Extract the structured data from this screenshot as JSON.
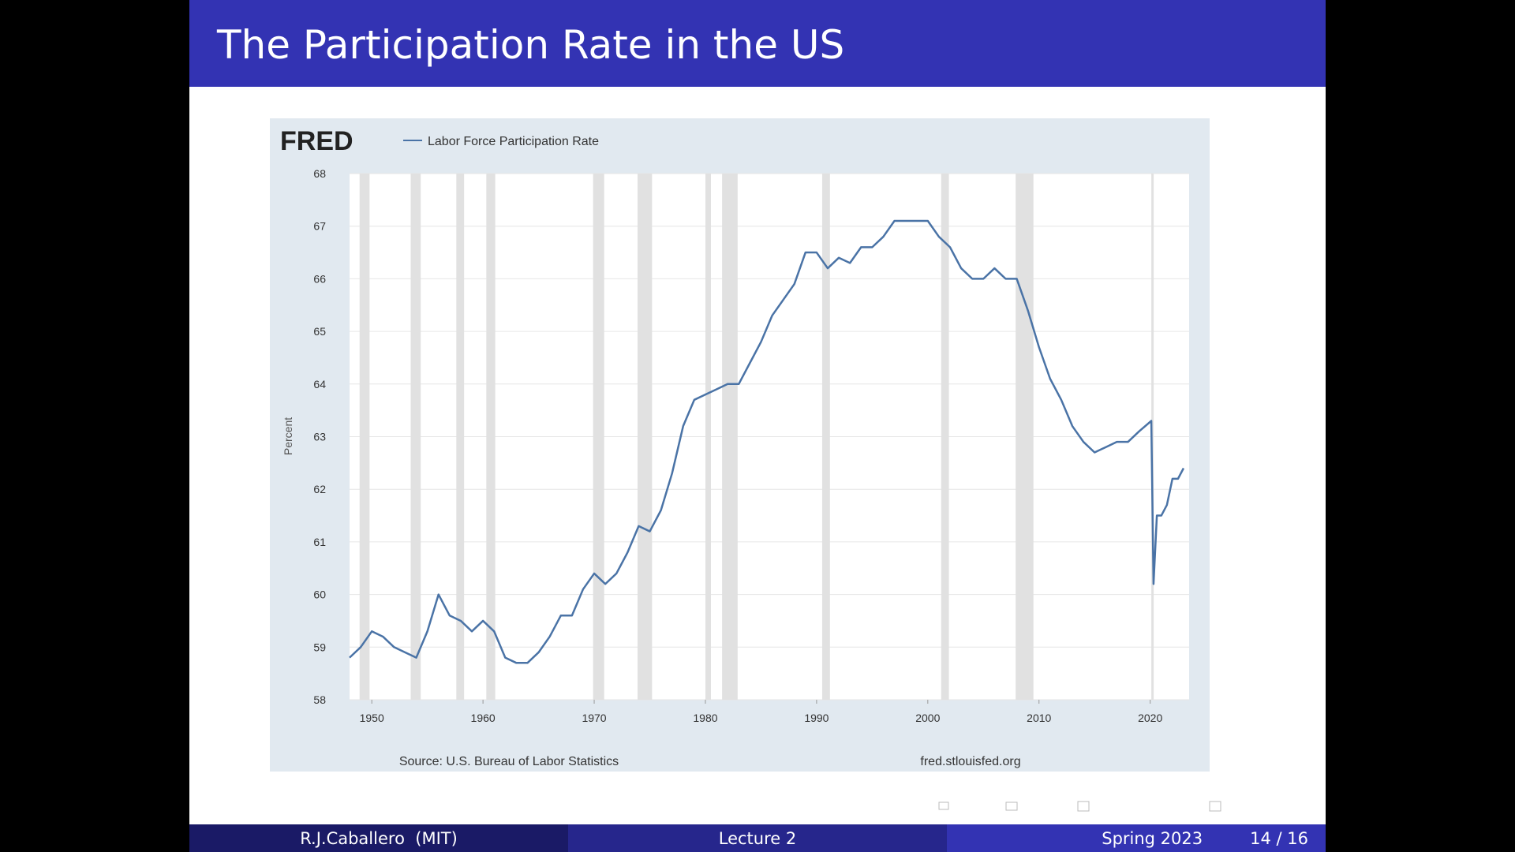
{
  "slide": {
    "title": "The Participation Rate in the US",
    "author": "R.J.Caballero  (MIT)",
    "lecture": "Lecture 2",
    "term": "Spring 2023",
    "page": "14 / 16"
  },
  "chart_data": {
    "type": "line",
    "logo": "FRED",
    "ylabel": "Percent",
    "source": "Source: U.S. Bureau of Labor Statistics",
    "url": "fred.stlouisfed.org",
    "x": [
      1948,
      1949,
      1950,
      1951,
      1952,
      1953,
      1954,
      1955,
      1956,
      1957,
      1958,
      1959,
      1960,
      1961,
      1962,
      1963,
      1964,
      1965,
      1966,
      1967,
      1968,
      1969,
      1970,
      1971,
      1972,
      1973,
      1974,
      1975,
      1976,
      1977,
      1978,
      1979,
      1980,
      1981,
      1982,
      1983,
      1984,
      1985,
      1986,
      1987,
      1988,
      1989,
      1990,
      1991,
      1992,
      1993,
      1994,
      1995,
      1996,
      1997,
      1998,
      1999,
      2000,
      2001,
      2002,
      2003,
      2004,
      2005,
      2006,
      2007,
      2008,
      2009,
      2010,
      2011,
      2012,
      2013,
      2014,
      2015,
      2016,
      2017,
      2018,
      2019,
      2020.1,
      2020.3,
      2020.6,
      2021,
      2021.5,
      2022,
      2022.5,
      2023
    ],
    "series": [
      {
        "name": "Labor Force Participation Rate",
        "color": "#4a73a6",
        "values": [
          58.8,
          59.0,
          59.3,
          59.2,
          59.0,
          58.9,
          58.8,
          59.3,
          60.0,
          59.6,
          59.5,
          59.3,
          59.5,
          59.3,
          58.8,
          58.7,
          58.7,
          58.9,
          59.2,
          59.6,
          59.6,
          60.1,
          60.4,
          60.2,
          60.4,
          60.8,
          61.3,
          61.2,
          61.6,
          62.3,
          63.2,
          63.7,
          63.8,
          63.9,
          64.0,
          64.0,
          64.4,
          64.8,
          65.3,
          65.6,
          65.9,
          66.5,
          66.5,
          66.2,
          66.4,
          66.3,
          66.6,
          66.6,
          66.8,
          67.1,
          67.1,
          67.1,
          67.1,
          66.8,
          66.6,
          66.2,
          66.0,
          66.0,
          66.2,
          66.0,
          66.0,
          65.4,
          64.7,
          64.1,
          63.7,
          63.2,
          62.9,
          62.7,
          62.8,
          62.9,
          62.9,
          63.1,
          63.3,
          60.2,
          61.5,
          61.5,
          61.7,
          62.2,
          62.2,
          62.4
        ]
      }
    ],
    "recessions": [
      [
        1948.9,
        1949.8
      ],
      [
        1953.5,
        1954.4
      ],
      [
        1957.6,
        1958.3
      ],
      [
        1960.3,
        1961.1
      ],
      [
        1969.9,
        1970.9
      ],
      [
        1973.9,
        1975.2
      ],
      [
        1980.0,
        1980.5
      ],
      [
        1981.5,
        1982.9
      ],
      [
        1990.5,
        1991.2
      ],
      [
        2001.2,
        2001.9
      ],
      [
        2007.9,
        2009.5
      ],
      [
        2020.1,
        2020.3
      ]
    ],
    "xlim": [
      1948,
      2023.5
    ],
    "ylim": [
      58,
      68
    ],
    "xticks": [
      1950,
      1960,
      1970,
      1980,
      1990,
      2000,
      2010,
      2020
    ],
    "yticks": [
      58,
      59,
      60,
      61,
      62,
      63,
      64,
      65,
      66,
      67,
      68
    ],
    "grid": true
  }
}
